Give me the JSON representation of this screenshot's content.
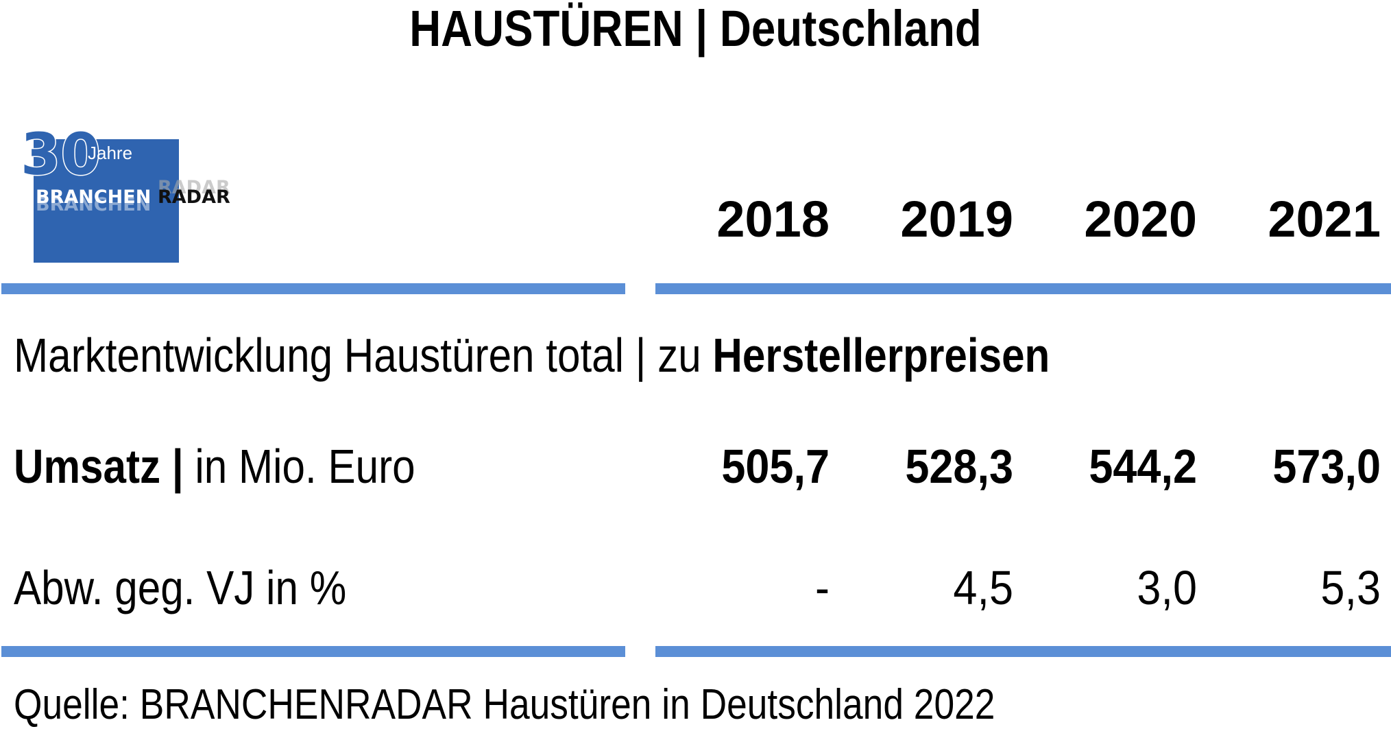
{
  "header": {
    "title": "HAUSTÜREN | Deutschland"
  },
  "logo": {
    "number": "30",
    "jahre": "Jahre",
    "brand_left": "BRANCHEN",
    "brand_right": "RADAR",
    "brand_color": "#2f64b0"
  },
  "table": {
    "years": [
      "2018",
      "2019",
      "2020",
      "2021"
    ],
    "subtitle_plain": "Marktentwicklung Haustüren total | zu ",
    "subtitle_bold": "Herstellerpreisen",
    "umsatz": {
      "label_bold": "Umsatz |",
      "label_rest": " in Mio. Euro",
      "values": [
        "505,7",
        "528,3",
        "544,2",
        "573,0"
      ]
    },
    "abw": {
      "label": "Abw. geg. VJ in %",
      "values": [
        "-",
        "4,5",
        "3,0",
        "5,3"
      ]
    }
  },
  "source": "Quelle: BRANCHENRADAR Haustüren in Deutschland 2022",
  "colors": {
    "rule": "#5b8fd6"
  }
}
